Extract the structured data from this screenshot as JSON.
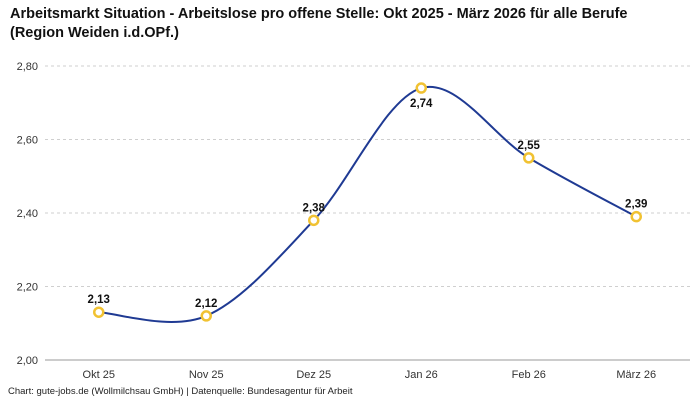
{
  "page": {
    "footer": "Chart: gute-jobs.de (Wollmilchsau GmbH) | Datenquelle: Bundesagentur für Arbeit"
  },
  "chart_data": {
    "type": "line",
    "title": "Arbeitsmarkt Situation - Arbeitslose pro offene Stelle: Okt 2025 - März 2026 für alle Berufe (Region Weiden i.d.OPf.)",
    "categories": [
      "Okt 25",
      "Nov 25",
      "Dez 25",
      "Jan 26",
      "Feb 26",
      "März 26"
    ],
    "values": [
      2.13,
      2.12,
      2.38,
      2.74,
      2.55,
      2.39
    ],
    "value_labels": [
      "2,13",
      "2,12",
      "2,38",
      "2,74",
      "2,55",
      "2,39"
    ],
    "y_ticks": [
      2.0,
      2.2,
      2.4,
      2.6,
      2.8
    ],
    "y_tick_labels": [
      "2,00",
      "2,20",
      "2,40",
      "2,60",
      "2,80"
    ],
    "ylim": [
      2.0,
      2.8
    ],
    "xlabel": "",
    "ylabel": "",
    "legend": "none",
    "grid": "horizontal-dashed",
    "line_color": "#1f3a93",
    "marker_ring_color": "#f1c232",
    "marker_fill_color": "#ffffff",
    "label_color": "#111111",
    "tick_color": "#333333",
    "gridline_color": "#cfcfcf",
    "axis_line_color": "#9a9a9a"
  }
}
